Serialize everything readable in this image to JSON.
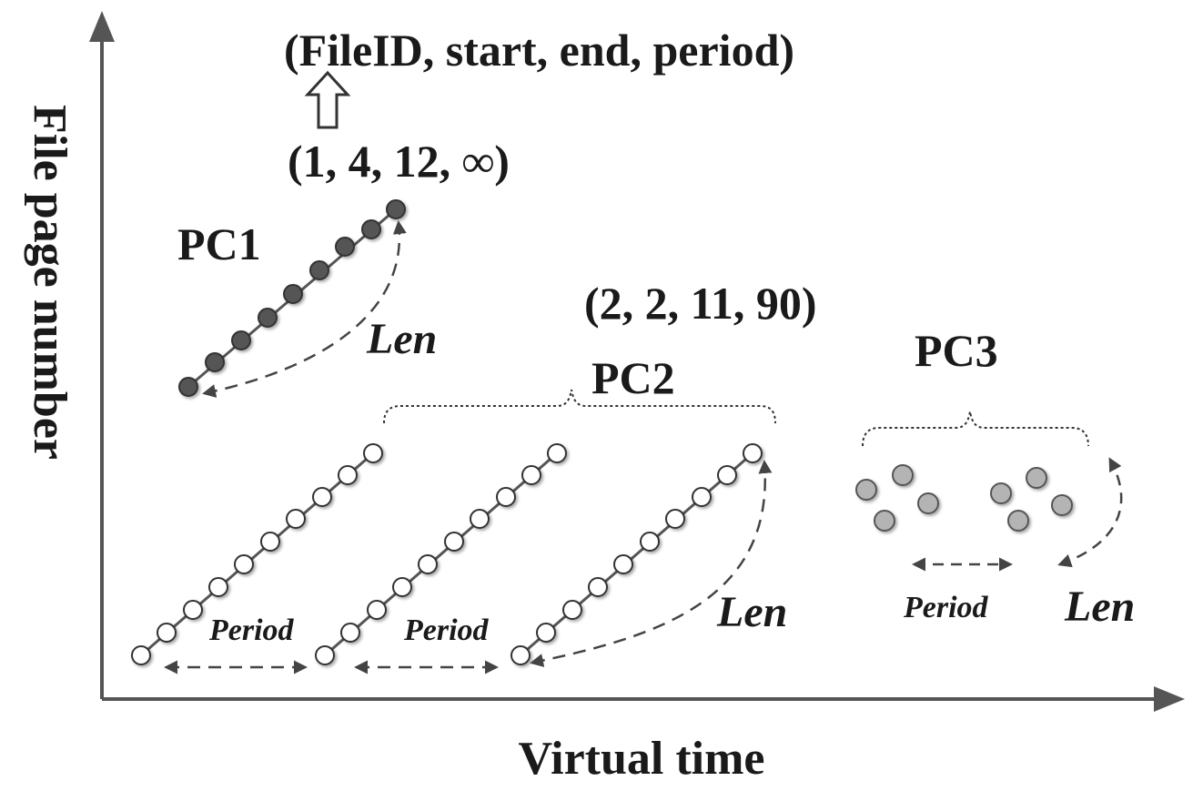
{
  "axes": {
    "x_label": "Virtual time",
    "y_label": "File page number"
  },
  "legend": {
    "format": "(FileID, start, end, period)"
  },
  "pc1": {
    "name": "PC1",
    "tuple": "(1, 4, 12, ∞)",
    "len_label": "Len"
  },
  "pc2": {
    "name": "PC2",
    "tuple": "(2, 2, 11, 90)",
    "len_label": "Len",
    "period_labels": [
      "Period",
      "Period"
    ]
  },
  "pc3": {
    "name": "PC3",
    "len_label": "Len",
    "period_label": "Period"
  },
  "colors": {
    "pc1_fill": "#555555",
    "pc2_fill": "#ffffff",
    "pc3_fill": "#b4b4b4",
    "stroke": "#333333"
  }
}
